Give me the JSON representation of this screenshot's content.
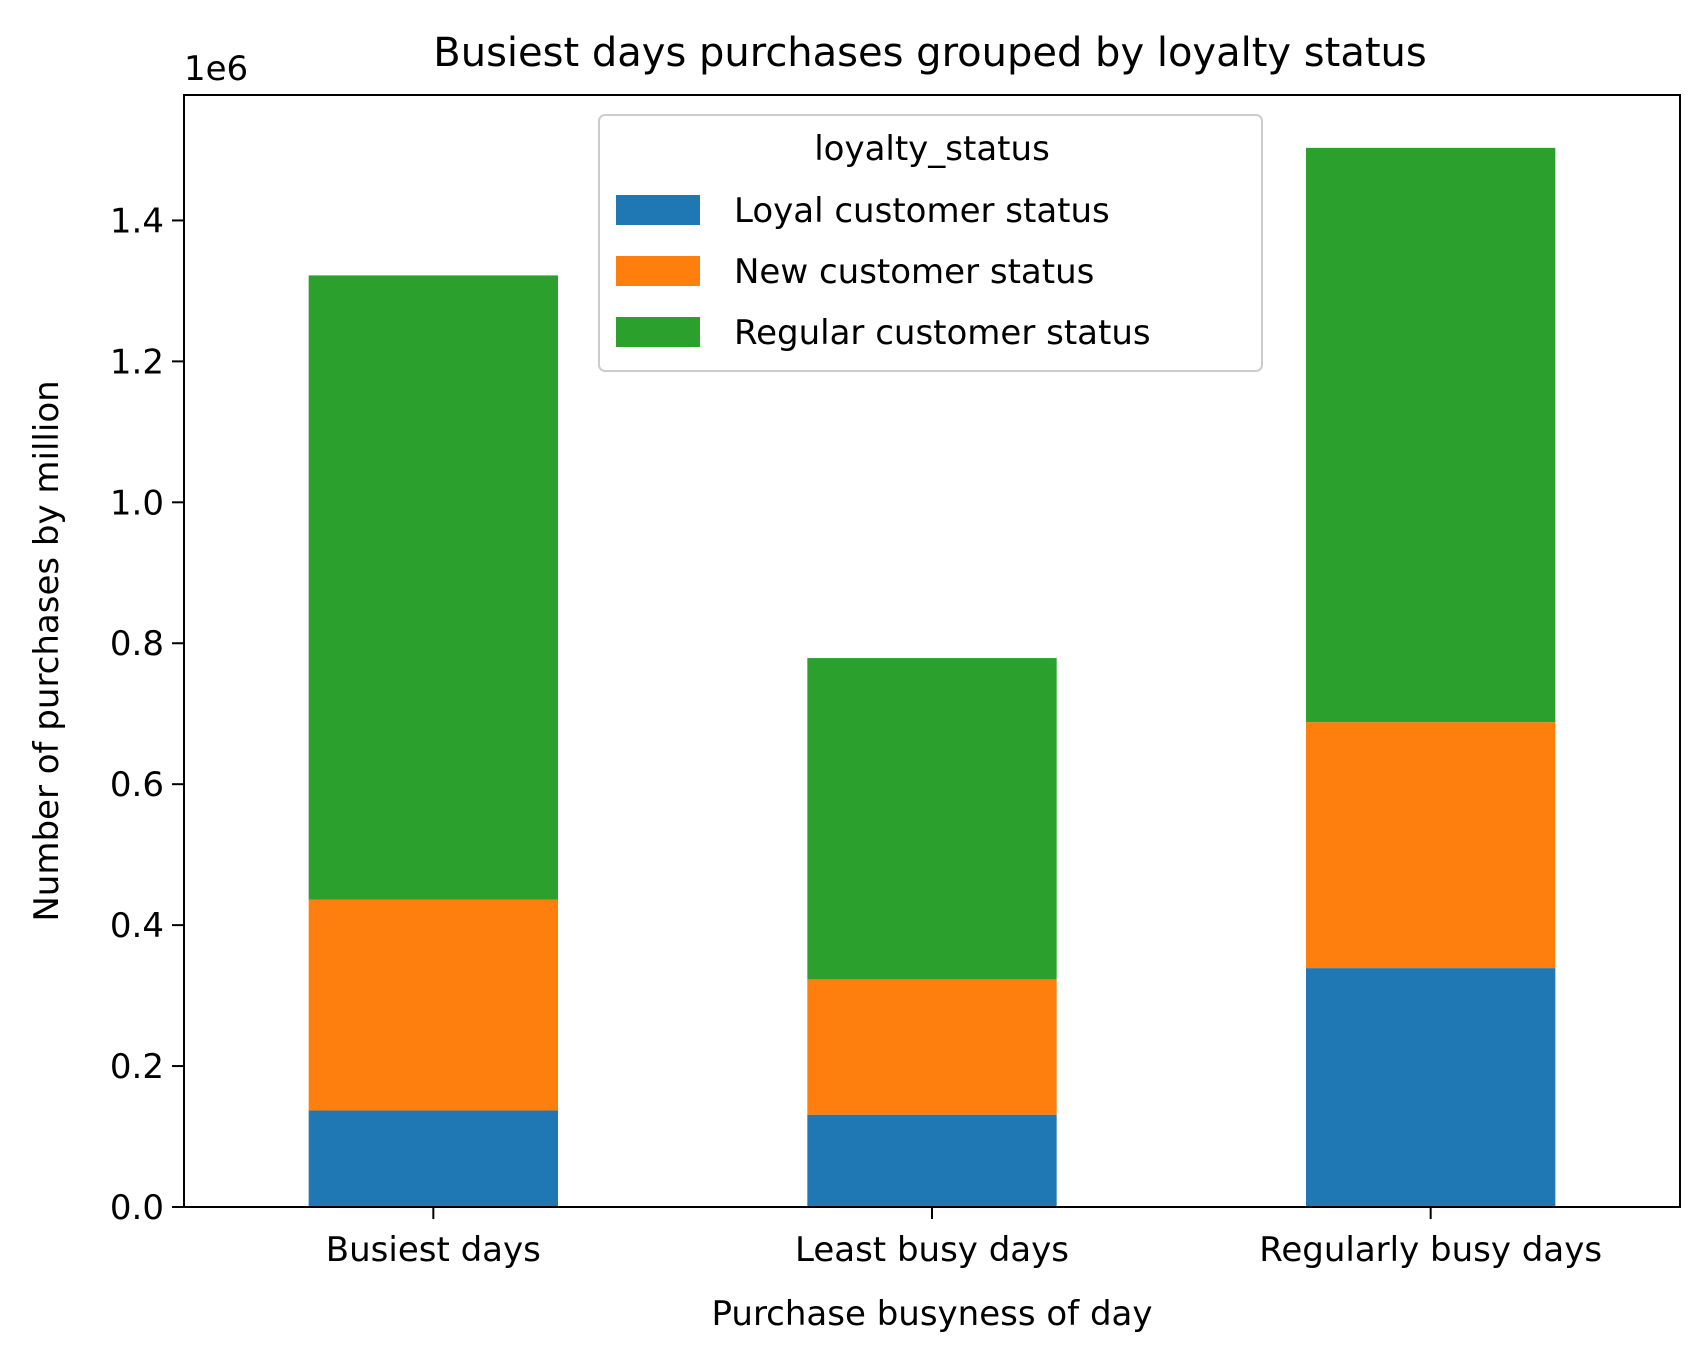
{
  "chart_data": {
    "type": "bar",
    "stacked": true,
    "title": "Busiest days purchases grouped by loyalty status",
    "xlabel": "Purchase busyness of day",
    "ylabel": "Number of purchases by million",
    "y_offset_label": "1e6",
    "categories": [
      "Busiest days",
      "Least busy days",
      "Regularly busy days"
    ],
    "series": [
      {
        "name": "Loyal customer status",
        "color": "#1f77b4",
        "values": [
          137000,
          131000,
          339000
        ]
      },
      {
        "name": "New customer status",
        "color": "#ff7f0e",
        "values": [
          299000,
          192000,
          349000
        ]
      },
      {
        "name": "Regular customer status",
        "color": "#2ca02c",
        "values": [
          886000,
          456000,
          815000
        ]
      }
    ],
    "ylim": [
      0,
      1578000
    ],
    "yticks": [
      0,
      200000,
      400000,
      600000,
      800000,
      1000000,
      1200000,
      1400000
    ],
    "ytick_labels": [
      "0.0",
      "0.2",
      "0.4",
      "0.6",
      "0.8",
      "1.0",
      "1.2",
      "1.4"
    ],
    "legend": {
      "title": "loyalty_status",
      "placement": "top-center"
    },
    "grid": false
  }
}
